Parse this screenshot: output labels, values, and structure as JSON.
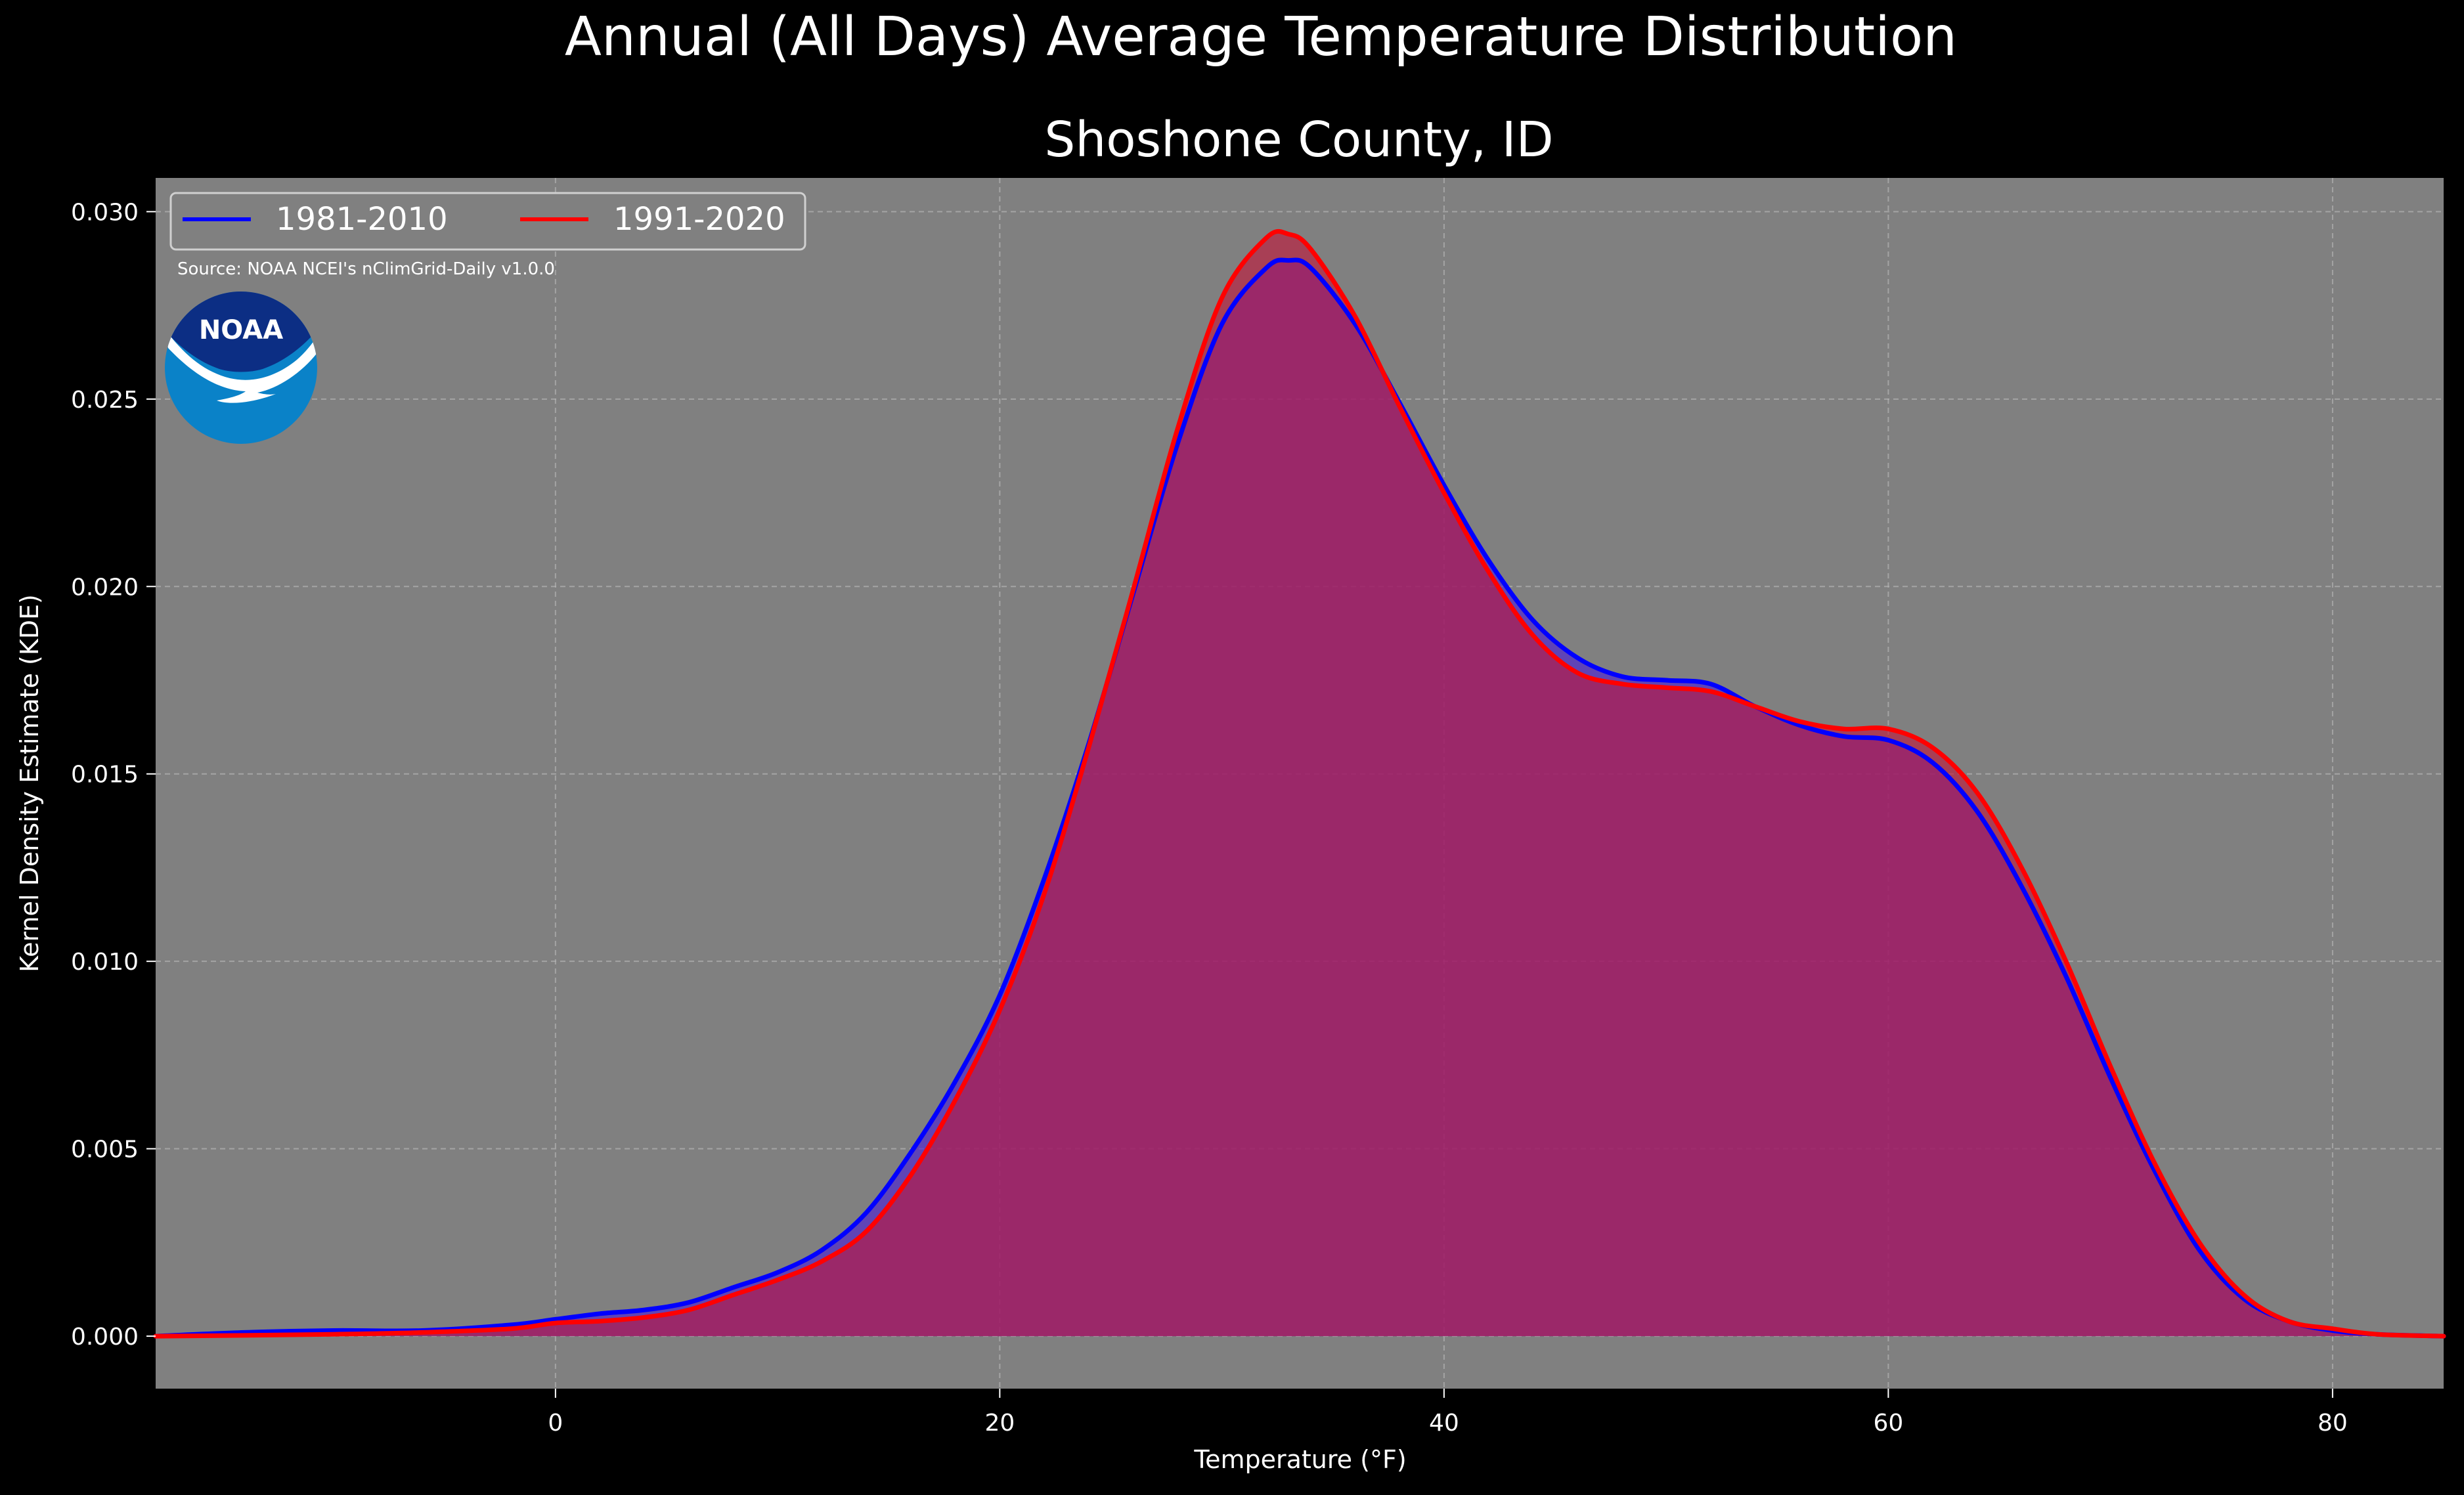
{
  "chart_data": {
    "type": "area",
    "suptitle": "Annual (All Days) Average Temperature Distribution",
    "title": "Shoshone County, ID",
    "xlabel": "Temperature (°F)",
    "ylabel": "Kernel Density Estimate (KDE)",
    "source": "Source: NOAA NCEI's nClimGrid-Daily v1.0.0",
    "logo_text": "NOAA",
    "xlim": [
      -18,
      85
    ],
    "ylim": [
      -0.0014,
      0.0309
    ],
    "x_ticks": [
      0,
      20,
      40,
      60,
      80
    ],
    "x_tick_labels": [
      "0",
      "20",
      "40",
      "60",
      "80"
    ],
    "y_ticks": [
      0.0,
      0.005,
      0.01,
      0.015,
      0.02,
      0.025,
      0.03
    ],
    "y_tick_labels": [
      "0.000",
      "0.005",
      "0.010",
      "0.015",
      "0.020",
      "0.025",
      "0.030"
    ],
    "grid": true,
    "legend_position": "top-left",
    "colors": {
      "background": "#000000",
      "plot_background": "#808080",
      "grid": "#b4b4b4"
    },
    "series": [
      {
        "name": "1981-2010",
        "color": "#0000ff",
        "fill": "#4a1fd6",
        "x": [
          -18,
          -14,
          -10,
          -6,
          -2,
          0,
          2,
          4,
          6,
          8,
          10,
          12,
          14,
          16,
          18,
          20,
          22,
          24,
          26,
          28,
          30,
          32,
          33,
          34,
          36,
          38,
          40,
          42,
          44,
          46,
          48,
          50,
          52,
          54,
          56,
          58,
          60,
          62,
          64,
          66,
          68,
          70,
          72,
          74,
          76,
          78,
          80,
          82,
          85
        ],
        "values": [
          0.0,
          0.0001,
          0.00015,
          0.00015,
          0.0003,
          0.00045,
          0.0006,
          0.0007,
          0.0009,
          0.0013,
          0.0017,
          0.0023,
          0.0033,
          0.0049,
          0.0068,
          0.0091,
          0.0122,
          0.0158,
          0.0198,
          0.0238,
          0.027,
          0.0285,
          0.0287,
          0.0285,
          0.027,
          0.0249,
          0.0227,
          0.0207,
          0.0191,
          0.0181,
          0.0176,
          0.0175,
          0.0174,
          0.0168,
          0.0163,
          0.016,
          0.0159,
          0.0153,
          0.014,
          0.012,
          0.0096,
          0.0069,
          0.0044,
          0.0023,
          0.001,
          0.0004,
          0.00015,
          5e-05,
          0.0
        ]
      },
      {
        "name": "1991-2020",
        "color": "#ff0000",
        "fill": "#c0163a",
        "x": [
          -18,
          -14,
          -10,
          -6,
          -2,
          0,
          2,
          4,
          6,
          8,
          10,
          12,
          14,
          16,
          18,
          20,
          22,
          24,
          26,
          28,
          30,
          32,
          33,
          34,
          36,
          38,
          40,
          42,
          44,
          46,
          48,
          50,
          52,
          54,
          56,
          58,
          60,
          62,
          64,
          66,
          68,
          70,
          72,
          74,
          76,
          78,
          80,
          82,
          85
        ],
        "values": [
          0.0,
          2e-05,
          5e-05,
          0.0001,
          0.0002,
          0.00035,
          0.0004,
          0.0005,
          0.0007,
          0.0011,
          0.0015,
          0.002,
          0.0028,
          0.0043,
          0.0063,
          0.0087,
          0.0118,
          0.0157,
          0.0199,
          0.0242,
          0.0277,
          0.0293,
          0.0294,
          0.029,
          0.0272,
          0.0248,
          0.0225,
          0.0204,
          0.0187,
          0.0177,
          0.0174,
          0.0173,
          0.0172,
          0.0168,
          0.0164,
          0.0162,
          0.0162,
          0.0157,
          0.0145,
          0.0125,
          0.01,
          0.0072,
          0.0046,
          0.0025,
          0.0011,
          0.0004,
          0.0002,
          5e-05,
          0.0
        ]
      }
    ]
  }
}
